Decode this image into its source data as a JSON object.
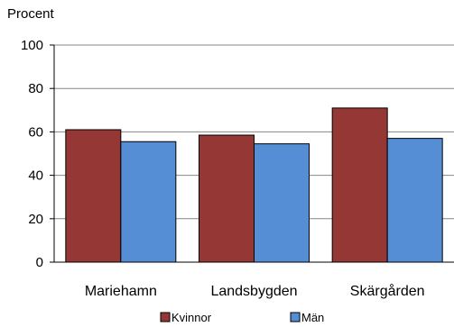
{
  "chart_data": {
    "type": "bar",
    "title": "",
    "ylabel": "Procent",
    "xlabel": "",
    "categories": [
      "Mariehamn",
      "Landsbygden",
      "Skärgården"
    ],
    "series": [
      {
        "name": "Kvinnor",
        "values": [
          61,
          58.5,
          71
        ],
        "color": "#953735"
      },
      {
        "name": "Män",
        "values": [
          55.5,
          54.5,
          57
        ],
        "color": "#558ED5"
      }
    ],
    "ylim": [
      0,
      100
    ],
    "yticks": [
      0,
      20,
      40,
      60,
      80,
      100
    ],
    "grid": true,
    "legend_position": "bottom"
  }
}
